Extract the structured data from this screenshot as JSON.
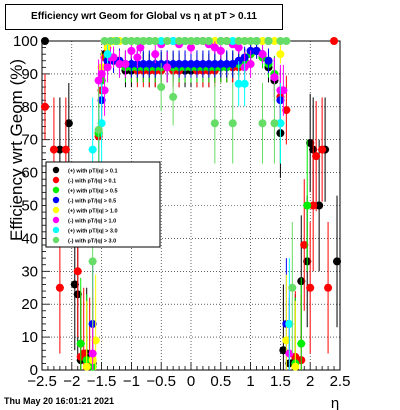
{
  "chart_data": {
    "type": "scatter",
    "title": "Efficiency wrt Geom for Global vs    η at pT > 0.11",
    "xlabel": "η",
    "ylabel": "Efficiency wrt Geom (%)",
    "xlim": [
      -2.5,
      2.5
    ],
    "ylim": [
      0,
      100
    ],
    "x_ticks": [
      "−2.5",
      "−2",
      "−1.5",
      "−1",
      "−0.5",
      "0",
      "0.5",
      "1",
      "1.5",
      "2",
      "2.5"
    ],
    "y_ticks": [
      "0",
      "10",
      "20",
      "30",
      "40",
      "50",
      "60",
      "70",
      "80",
      "90",
      "100"
    ],
    "grid": true,
    "legend_position": "middle-left",
    "series": [
      {
        "name": "(+) with pT/|q| > 0.1",
        "color": "#000000",
        "x": [
          -2.45,
          -2.2,
          -2.05,
          -1.95,
          -1.9,
          -1.85,
          -1.75,
          -1.65,
          -1.55,
          -1.5,
          -1.45,
          -1.4,
          -1.3,
          -1.2,
          -1.1,
          -1.0,
          -0.9,
          -0.8,
          -0.7,
          -0.6,
          -0.5,
          -0.4,
          -0.3,
          -0.2,
          -0.1,
          0.0,
          0.1,
          0.2,
          0.3,
          0.4,
          0.5,
          0.6,
          0.7,
          0.8,
          0.9,
          1.0,
          1.1,
          1.2,
          1.3,
          1.4,
          1.5,
          1.55,
          1.65,
          1.75,
          1.85,
          1.95,
          2.0,
          2.05,
          2.15,
          2.25,
          2.45
        ],
        "y": [
          100,
          67,
          75,
          26,
          23,
          3,
          5,
          2,
          72,
          88,
          96,
          95,
          94,
          93,
          91,
          91,
          92,
          92,
          91,
          91,
          92,
          92,
          92,
          91,
          91,
          91,
          91,
          91,
          91,
          92,
          92,
          92,
          92,
          93,
          94,
          96,
          97,
          95,
          92,
          88,
          72,
          6,
          2,
          3,
          27,
          33,
          69,
          67,
          50,
          67,
          33
        ]
      },
      {
        "name": "(-) with pT/|q| > 0.1",
        "color": "#ff0000",
        "x": [
          -2.45,
          -2.3,
          -2.2,
          -2.1,
          -1.9,
          -1.85,
          -1.8,
          -1.7,
          -1.55,
          -1.5,
          -1.45,
          -1.3,
          -1.2,
          -1.1,
          -1.0,
          -0.9,
          -0.8,
          -0.7,
          -0.6,
          -0.5,
          -0.4,
          -0.3,
          -0.2,
          -0.1,
          0.0,
          0.1,
          0.2,
          0.3,
          0.4,
          0.5,
          0.6,
          0.7,
          0.8,
          0.9,
          1.0,
          1.1,
          1.2,
          1.3,
          1.4,
          1.5,
          1.6,
          1.75,
          1.85,
          1.9,
          2.0,
          2.05,
          2.1,
          2.2,
          2.3,
          2.4
        ],
        "y": [
          80,
          67,
          25,
          67,
          30,
          4,
          5,
          2,
          71,
          85,
          95,
          95,
          94,
          93,
          92,
          91,
          91,
          91,
          91,
          91,
          92,
          91,
          91,
          92,
          92,
          91,
          91,
          91,
          91,
          92,
          92,
          92,
          92,
          94,
          96,
          97,
          95,
          94,
          89,
          83,
          79,
          4,
          3,
          38,
          25,
          50,
          65,
          67,
          25,
          100
        ]
      },
      {
        "name": "(+) with pT/|q| > 0.5",
        "color": "#00ee00",
        "x": [
          -1.85,
          -1.75,
          -1.65,
          -1.55,
          -1.5,
          -1.4,
          -1.3,
          -1.2,
          -1.1,
          -1.0,
          -0.9,
          -0.8,
          -0.7,
          -0.6,
          -0.5,
          -0.4,
          -0.3,
          -0.2,
          -0.1,
          0.0,
          0.1,
          0.2,
          0.3,
          0.4,
          0.5,
          0.6,
          0.7,
          0.8,
          0.9,
          1.0,
          1.1,
          1.2,
          1.3,
          1.4,
          1.5,
          1.75,
          1.85,
          1.95
        ],
        "y": [
          8,
          3,
          1,
          72,
          88,
          95,
          94,
          93,
          92,
          92,
          92,
          92,
          92,
          92,
          92,
          92,
          92,
          92,
          92,
          92,
          92,
          92,
          92,
          92,
          92,
          92,
          93,
          93,
          94,
          96,
          97,
          95,
          93,
          90,
          75,
          2,
          8,
          50
        ]
      },
      {
        "name": "(-) with pT/|q| > 0.5",
        "color": "#0000ff",
        "x": [
          -1.65,
          -1.55,
          -1.5,
          -1.4,
          -1.3,
          -1.2,
          -1.1,
          -1.0,
          -0.9,
          -0.8,
          -0.7,
          -0.6,
          -0.5,
          -0.4,
          -0.3,
          -0.2,
          -0.1,
          0.0,
          0.1,
          0.2,
          0.3,
          0.4,
          0.5,
          0.6,
          0.7,
          0.8,
          0.9,
          1.0,
          1.1,
          1.2,
          1.3,
          1.4,
          1.5,
          1.6
        ],
        "y": [
          14,
          60,
          82,
          94,
          94,
          94,
          93,
          93,
          93,
          93,
          93,
          93,
          93,
          93,
          93,
          93,
          93,
          93,
          93,
          93,
          93,
          93,
          93,
          93,
          93,
          94,
          95,
          97,
          97,
          96,
          94,
          89,
          82,
          14
        ]
      },
      {
        "name": "(+) with pT/|q| > 1.0",
        "color": "#ffff00",
        "x": [
          -1.75,
          -1.65,
          -1.6,
          -1.5,
          -1.4,
          -1.3,
          -1.2,
          -1.1,
          -1.0,
          -0.9,
          -0.8,
          -0.7,
          -0.6,
          -0.5,
          -0.4,
          -0.3,
          -0.2,
          -0.1,
          0.0,
          0.1,
          0.2,
          0.3,
          0.4,
          0.5,
          0.6,
          0.7,
          0.8,
          0.9,
          1.0,
          1.1,
          1.2,
          1.3,
          1.4,
          1.5,
          1.6,
          1.75
        ],
        "y": [
          1,
          3,
          9,
          92,
          98,
          100,
          100,
          100,
          100,
          100,
          100,
          100,
          100,
          100,
          100,
          100,
          100,
          100,
          100,
          100,
          100,
          100,
          100,
          100,
          100,
          100,
          100,
          100,
          100,
          100,
          100,
          100,
          100,
          96,
          9,
          1
        ]
      },
      {
        "name": "(-) with pT/|q| > 1.0",
        "color": "#ff00ff",
        "x": [
          -1.65,
          -1.55,
          -1.5,
          -1.45,
          -1.4,
          -1.35,
          -1.3,
          -1.2,
          -1.1,
          -1.0,
          -0.9,
          -0.85,
          -0.7,
          -0.6,
          -0.5,
          -0.4,
          -0.3,
          -0.2,
          -0.1,
          0.0,
          0.1,
          0.2,
          0.3,
          0.4,
          0.5,
          0.6,
          0.7,
          0.8,
          0.9,
          1.0,
          1.1,
          1.2,
          1.3,
          1.4,
          1.5,
          1.55,
          1.65
        ],
        "y": [
          5,
          88,
          90,
          85,
          92,
          95,
          95,
          93,
          93,
          97,
          95,
          98,
          100,
          96,
          99,
          92,
          100,
          99,
          100,
          98,
          100,
          100,
          99,
          98,
          97,
          100,
          99,
          98,
          92,
          93,
          100,
          96,
          100,
          89,
          85,
          85,
          5
        ]
      },
      {
        "name": "(+) with pT/|q| > 3.0",
        "color": "#00ffff",
        "x": [
          -1.65,
          -1.55,
          -1.5,
          -1.4,
          -1.25,
          -1.1,
          -0.9,
          -0.7,
          -0.5,
          -0.3,
          -0.1,
          0.1,
          0.3,
          0.5,
          0.7,
          0.8,
          0.9,
          1.1,
          1.3,
          1.5,
          1.65
        ],
        "y": [
          67,
          62,
          75,
          96,
          100,
          100,
          100,
          100,
          100,
          100,
          100,
          100,
          100,
          100,
          100,
          87,
          87,
          100,
          100,
          75,
          14
        ]
      },
      {
        "name": "(-) with pT/|q| > 3.0",
        "color": "#66dd66",
        "x": [
          -1.65,
          -1.55,
          -1.45,
          -1.35,
          -1.25,
          -1.1,
          -1.0,
          -0.9,
          -0.8,
          -0.7,
          -0.6,
          -0.5,
          -0.4,
          -0.3,
          -0.2,
          -0.1,
          0.0,
          0.1,
          0.2,
          0.3,
          0.4,
          0.5,
          0.6,
          0.7,
          0.8,
          0.9,
          1.0,
          1.1,
          1.2,
          1.3,
          1.4,
          1.5,
          1.6,
          1.7
        ],
        "y": [
          33,
          73,
          100,
          100,
          100,
          100,
          100,
          100,
          100,
          100,
          100,
          86,
          100,
          83,
          100,
          100,
          100,
          100,
          100,
          100,
          75,
          100,
          100,
          75,
          100,
          100,
          100,
          100,
          75,
          100,
          75,
          100,
          100,
          25
        ]
      }
    ]
  },
  "footer": {
    "timestamp": "Thu May 20 16:01:21 2021"
  }
}
